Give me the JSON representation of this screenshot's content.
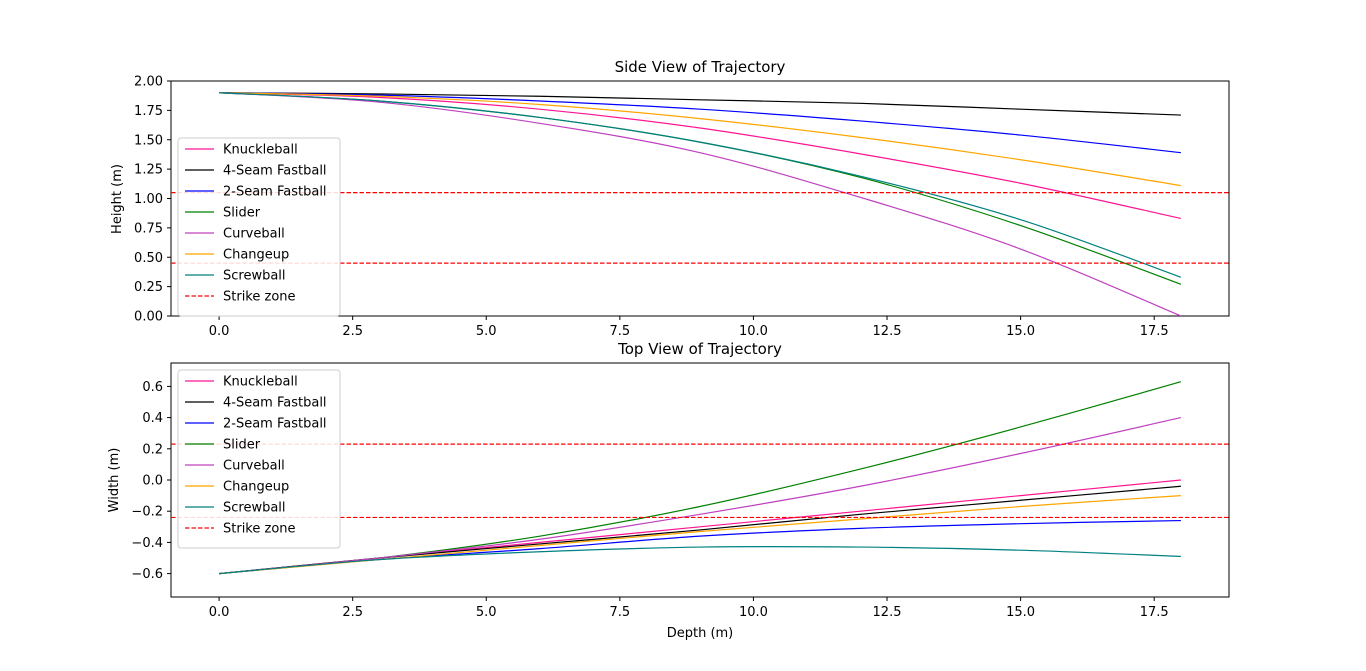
{
  "chart_data": [
    {
      "type": "line",
      "title": "Side View of Trajectory",
      "xlabel": "",
      "ylabel": "Height (m)",
      "xlim": [
        -0.9,
        18.9
      ],
      "ylim": [
        0,
        2
      ],
      "xticks": [
        "0.0",
        "2.5",
        "5.0",
        "7.5",
        "10.0",
        "12.5",
        "15.0",
        "17.5"
      ],
      "yticks": [
        "0.00",
        "0.25",
        "0.50",
        "0.75",
        "1.00",
        "1.25",
        "1.50",
        "1.75",
        "2.00"
      ],
      "grid": false,
      "legend": "left",
      "series": [
        {
          "name": "Knuckleball",
          "color": "#ff1493",
          "x": [
            0,
            3,
            6,
            9,
            12,
            15,
            18
          ],
          "y": [
            1.9,
            1.86,
            1.76,
            1.6,
            1.38,
            1.13,
            0.83
          ]
        },
        {
          "name": "4-Seam Fastball",
          "color": "#000000",
          "x": [
            0,
            3,
            6,
            9,
            12,
            15,
            18
          ],
          "y": [
            1.9,
            1.89,
            1.87,
            1.84,
            1.81,
            1.76,
            1.71
          ]
        },
        {
          "name": "2-Seam Fastball",
          "color": "#0000ff",
          "x": [
            0,
            3,
            6,
            9,
            12,
            15,
            18
          ],
          "y": [
            1.9,
            1.88,
            1.83,
            1.76,
            1.66,
            1.54,
            1.39
          ]
        },
        {
          "name": "Slider",
          "color": "#008000",
          "x": [
            0,
            3,
            6,
            9,
            12,
            15,
            18
          ],
          "y": [
            1.9,
            1.83,
            1.69,
            1.48,
            1.18,
            0.77,
            0.27
          ]
        },
        {
          "name": "Curveball",
          "color": "#bf40bf",
          "x": [
            0,
            3,
            6,
            9,
            12,
            15,
            18
          ],
          "y": [
            1.9,
            1.82,
            1.64,
            1.39,
            1.01,
            0.57,
            0.0
          ]
        },
        {
          "name": "Changeup",
          "color": "#ffa500",
          "x": [
            0,
            3,
            6,
            9,
            12,
            15,
            18
          ],
          "y": [
            1.9,
            1.87,
            1.8,
            1.68,
            1.52,
            1.33,
            1.11
          ]
        },
        {
          "name": "Screwball",
          "color": "#008080",
          "x": [
            0,
            3,
            6,
            9,
            12,
            15,
            18
          ],
          "y": [
            1.9,
            1.83,
            1.69,
            1.48,
            1.19,
            0.82,
            0.33
          ]
        }
      ],
      "reference_lines": {
        "name": "Strike zone",
        "color": "#ff0000",
        "y": [
          1.05,
          0.45
        ]
      }
    },
    {
      "type": "line",
      "title": "Top View of Trajectory",
      "xlabel": "Depth (m)",
      "ylabel": "Width (m)",
      "xlim": [
        -0.9,
        18.9
      ],
      "ylim": [
        -0.75,
        0.75
      ],
      "xticks": [
        "0.0",
        "2.5",
        "5.0",
        "7.5",
        "10.0",
        "12.5",
        "15.0",
        "17.5"
      ],
      "yticks": [
        "−0.6",
        "−0.4",
        "−0.2",
        "0.0",
        "0.2",
        "0.4",
        "0.6"
      ],
      "grid": false,
      "legend": "upper left",
      "series": [
        {
          "name": "Knuckleball",
          "color": "#ff1493",
          "x": [
            0,
            3,
            6,
            9,
            12,
            15,
            18
          ],
          "y": [
            -0.6,
            -0.5,
            -0.4,
            -0.3,
            -0.2,
            -0.1,
            0.0
          ]
        },
        {
          "name": "4-Seam Fastball",
          "color": "#000000",
          "x": [
            0,
            3,
            6,
            9,
            12,
            15,
            18
          ],
          "y": [
            -0.6,
            -0.5,
            -0.41,
            -0.32,
            -0.22,
            -0.13,
            -0.04
          ]
        },
        {
          "name": "2-Seam Fastball",
          "color": "#0000ff",
          "x": [
            0,
            3,
            6,
            9,
            12,
            15,
            18
          ],
          "y": [
            -0.6,
            -0.51,
            -0.44,
            -0.36,
            -0.31,
            -0.28,
            -0.26
          ]
        },
        {
          "name": "Slider",
          "color": "#008000",
          "x": [
            0,
            3,
            6,
            9,
            12,
            15,
            18
          ],
          "y": [
            -0.6,
            -0.5,
            -0.36,
            -0.17,
            0.07,
            0.34,
            0.63
          ]
        },
        {
          "name": "Curveball",
          "color": "#bf40bf",
          "x": [
            0,
            3,
            6,
            9,
            12,
            15,
            18
          ],
          "y": [
            -0.6,
            -0.5,
            -0.38,
            -0.22,
            -0.04,
            0.17,
            0.4
          ]
        },
        {
          "name": "Changeup",
          "color": "#ffa500",
          "x": [
            0,
            3,
            6,
            9,
            12,
            15,
            18
          ],
          "y": [
            -0.6,
            -0.51,
            -0.42,
            -0.33,
            -0.25,
            -0.17,
            -0.1
          ]
        },
        {
          "name": "Screwball",
          "color": "#008080",
          "x": [
            0,
            3,
            6,
            9,
            12,
            15,
            18
          ],
          "y": [
            -0.6,
            -0.51,
            -0.46,
            -0.43,
            -0.43,
            -0.45,
            -0.49
          ]
        }
      ],
      "reference_lines": {
        "name": "Strike zone",
        "color": "#ff0000",
        "y": [
          0.23,
          -0.24
        ]
      }
    }
  ]
}
